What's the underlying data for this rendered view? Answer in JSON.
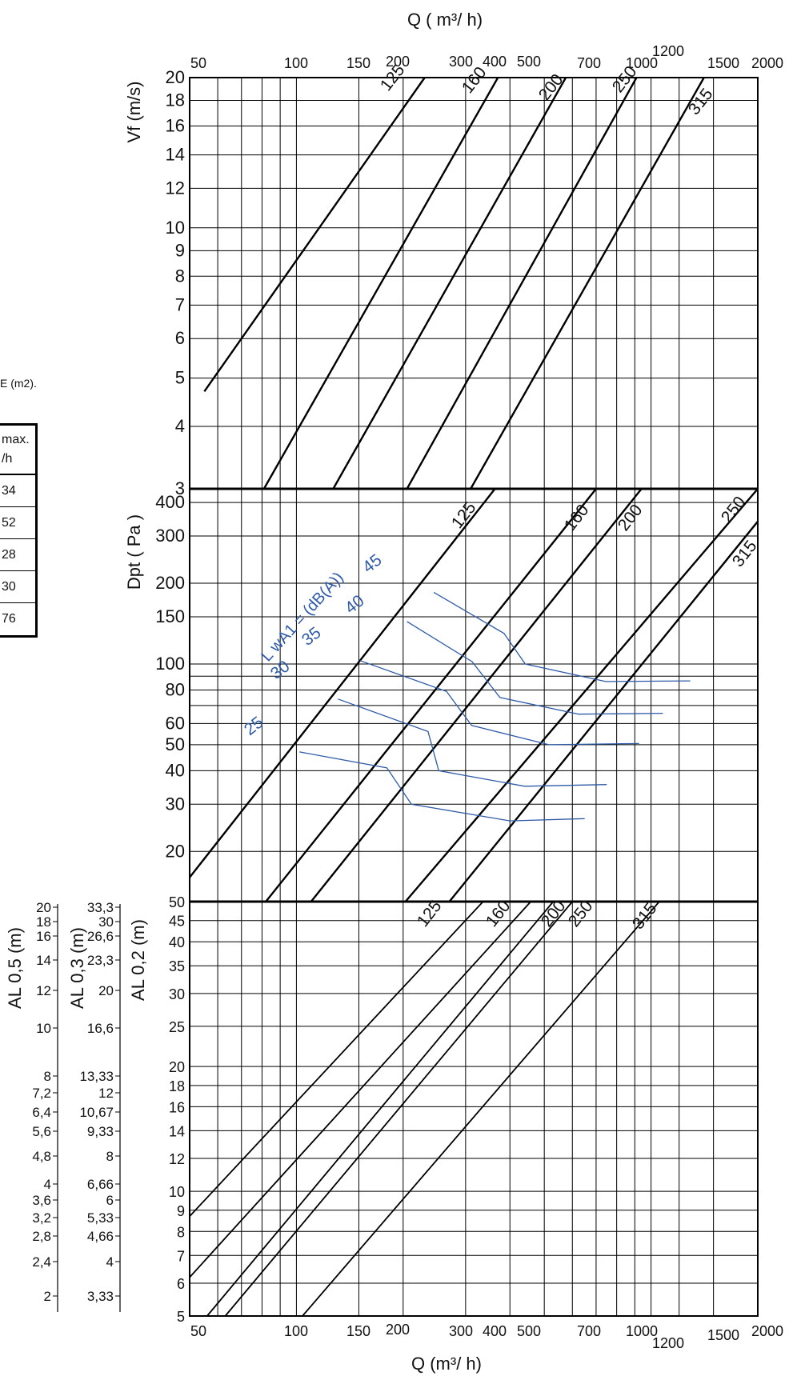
{
  "colors": {
    "grid": "#000000",
    "duct_lines": "#000000",
    "noise_lines": "#2e5aa8"
  },
  "side_table": {
    "note": "E  (m2).",
    "header": [
      "max.",
      "/h"
    ],
    "rows": [
      "34",
      "52",
      "28",
      "30",
      "76"
    ]
  },
  "chart_data": [
    {
      "type": "line",
      "panel": "velocity",
      "title": "Q ( m³/ h)",
      "xlabel": "Q ( m³/ h)",
      "ylabel": "Vf  (m/s)",
      "x_scale": "log",
      "y_scale": "log",
      "xlim": [
        50,
        2000
      ],
      "ylim": [
        3,
        20
      ],
      "x_ticks": [
        50,
        100,
        150,
        200,
        300,
        400,
        500,
        700,
        1000,
        1200,
        1500,
        2000
      ],
      "y_ticks": [
        3,
        4,
        5,
        6,
        7,
        8,
        9,
        10,
        12,
        14,
        16,
        18,
        20
      ],
      "grid": true,
      "series": [
        {
          "name": "125",
          "x": [
            55,
            230
          ],
          "y": [
            4.7,
            20
          ]
        },
        {
          "name": "160",
          "x": [
            81,
            370
          ],
          "y": [
            3,
            20
          ]
        },
        {
          "name": "200",
          "x": [
            127,
            575
          ],
          "y": [
            3,
            20
          ]
        },
        {
          "name": "250",
          "x": [
            205,
            910
          ],
          "y": [
            3,
            20
          ]
        },
        {
          "name": "315",
          "x": [
            310,
            1410
          ],
          "y": [
            3,
            20
          ]
        }
      ]
    },
    {
      "type": "line",
      "panel": "pressure",
      "ylabel": "Dpt ( Pa )",
      "x_scale": "log",
      "y_scale": "log",
      "xlim": [
        50,
        2000
      ],
      "ylim": [
        13,
        450
      ],
      "y_ticks": [
        20,
        30,
        40,
        50,
        60,
        80,
        100,
        150,
        200,
        300,
        400
      ],
      "grid": true,
      "series": [
        {
          "name": "125",
          "x": [
            50,
            363
          ],
          "y": [
            16,
            450
          ]
        },
        {
          "name": "160",
          "x": [
            82,
            700
          ],
          "y": [
            13,
            450
          ]
        },
        {
          "name": "200",
          "x": [
            110,
            940
          ],
          "y": [
            13,
            450
          ]
        },
        {
          "name": "250",
          "x": [
            203,
            2000
          ],
          "y": [
            13,
            450
          ]
        },
        {
          "name": "315",
          "x": [
            270,
            2000
          ],
          "y": [
            13,
            340
          ]
        }
      ],
      "noise_label": "L wA1 = (dB(A))",
      "noise_curves": [
        {
          "name": "25",
          "x": [
            102,
            180,
            211,
            400,
            650
          ],
          "y": [
            47,
            41,
            30,
            26,
            26.5
          ]
        },
        {
          "name": "30",
          "x": [
            131,
            235,
            252,
            440,
            750
          ],
          "y": [
            74,
            56,
            40,
            35,
            35.5
          ]
        },
        {
          "name": "35",
          "x": [
            151,
            265,
            312,
            515,
            925
          ],
          "y": [
            103,
            79,
            59,
            50,
            50.5
          ]
        },
        {
          "name": "40",
          "x": [
            205,
            313,
            375,
            625,
            1080
          ],
          "y": [
            144,
            102,
            75,
            65,
            65.5
          ]
        },
        {
          "name": "45",
          "x": [
            244,
            385,
            442,
            745,
            1290
          ],
          "y": [
            185,
            130,
            100,
            86,
            86.5
          ]
        }
      ]
    },
    {
      "type": "line",
      "panel": "attenuation",
      "xlabel": "Q (m³/ h)",
      "ylabel": "AL 0,2 (m)",
      "x_scale": "log",
      "y_scale": "log",
      "xlim": [
        50,
        2000
      ],
      "ylim": [
        5,
        50
      ],
      "y_ticks": [
        5,
        6,
        7,
        8,
        9,
        10,
        12,
        14,
        16,
        18,
        20,
        25,
        30,
        35,
        40,
        45,
        50
      ],
      "grid": true,
      "series": [
        {
          "name": "125",
          "x": [
            50,
            336
          ],
          "y": [
            8.7,
            50
          ]
        },
        {
          "name": "160",
          "x": [
            50,
            458
          ],
          "y": [
            6.2,
            50
          ]
        },
        {
          "name": "200",
          "x": [
            56,
            530
          ],
          "y": [
            5,
            50
          ]
        },
        {
          "name": "250",
          "x": [
            63,
            600
          ],
          "y": [
            5,
            50
          ]
        },
        {
          "name": "315",
          "x": [
            104,
            1055
          ],
          "y": [
            5,
            50
          ]
        }
      ],
      "secondary_axes": [
        {
          "label": "AL 0,3 (m)",
          "ticks": [
            "33,3",
            "30",
            "26,6",
            "23,3",
            "20",
            "16,6",
            "13,33",
            "12",
            "10,67",
            "9,33",
            "8",
            "6,66",
            "6",
            "5,33",
            "4,66",
            "4",
            "3,33"
          ]
        },
        {
          "label": "AL 0,5 (m)",
          "ticks": [
            "20",
            "18",
            "16",
            "14",
            "12",
            "10",
            "8",
            "7,2",
            "6,4",
            "5,6",
            "4,8",
            "4",
            "3,6",
            "3,2",
            "2,8",
            "2,4",
            "2"
          ]
        }
      ]
    }
  ]
}
